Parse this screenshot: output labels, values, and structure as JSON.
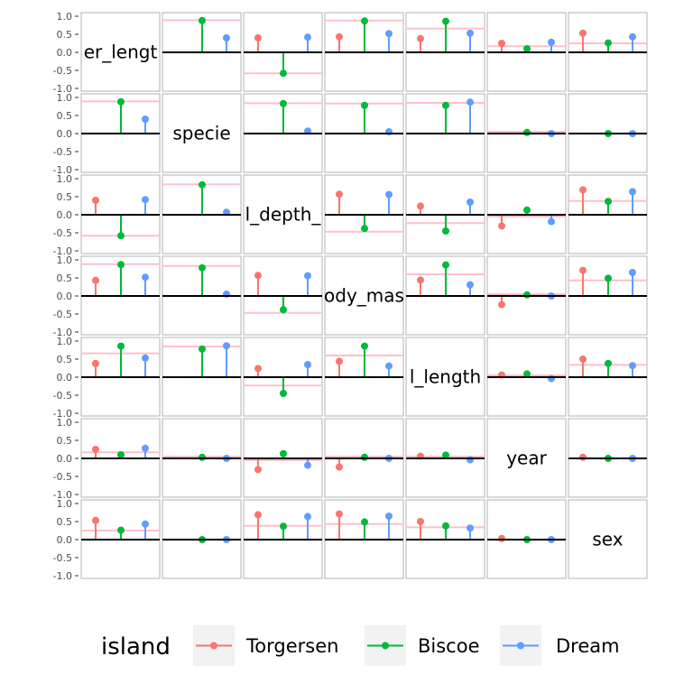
{
  "chart_data": {
    "type": "lollipop-matrix",
    "variables": [
      "bill_length_mm",
      "species",
      "bill_depth_mm",
      "body_mass_g",
      "flipper_length_mm",
      "year",
      "sex"
    ],
    "diagonal_labels": [
      "er_lengt",
      "specie",
      "l_depth_",
      "ody_mas",
      "l_length",
      "year",
      "sex"
    ],
    "ylim": [
      -1.0,
      1.0
    ],
    "y_ticks": [
      1.0,
      0.5,
      0.0,
      -0.5,
      -1.0
    ],
    "y_tick_labels": [
      "1.0",
      "0.5",
      "0.0",
      "-0.5",
      "-1.0"
    ],
    "groups": [
      "Torgersen",
      "Biscoe",
      "Dream"
    ],
    "colors": {
      "Torgersen": "#f8766d",
      "Biscoe": "#00ba38",
      "Dream": "#619cff",
      "reference": "#ffc0cb",
      "frame": "#b3b3b3"
    },
    "matrix": [
      [
        null,
        [
          null,
          0.88,
          0.4
        ],
        [
          0.4,
          -0.58,
          0.42
        ],
        [
          0.43,
          0.87,
          0.52
        ],
        [
          0.38,
          0.86,
          0.53
        ],
        [
          0.25,
          0.1,
          0.28
        ],
        [
          0.53,
          0.26,
          0.43
        ]
      ],
      [
        [
          null,
          0.88,
          0.4
        ],
        null,
        [
          null,
          0.83,
          0.07
        ],
        [
          null,
          0.78,
          0.05
        ],
        [
          null,
          0.78,
          0.87
        ],
        [
          null,
          0.03,
          0.0
        ],
        [
          null,
          0.0,
          0.0
        ]
      ],
      [
        [
          0.4,
          -0.58,
          0.42
        ],
        [
          null,
          0.83,
          0.07
        ],
        null,
        [
          0.57,
          -0.38,
          0.56
        ],
        [
          0.24,
          -0.45,
          0.35
        ],
        [
          -0.31,
          0.13,
          -0.19
        ],
        [
          0.69,
          0.37,
          0.64
        ]
      ],
      [
        [
          0.43,
          0.87,
          0.52
        ],
        [
          null,
          0.78,
          0.05
        ],
        [
          0.57,
          -0.38,
          0.56
        ],
        null,
        [
          0.44,
          0.86,
          0.31
        ],
        [
          -0.24,
          0.03,
          0.0
        ],
        [
          0.71,
          0.49,
          0.65
        ]
      ],
      [
        [
          0.38,
          0.86,
          0.53
        ],
        [
          null,
          0.78,
          0.87
        ],
        [
          0.24,
          -0.45,
          0.35
        ],
        [
          0.44,
          0.86,
          0.31
        ],
        null,
        [
          0.06,
          0.09,
          -0.04
        ],
        [
          0.5,
          0.38,
          0.32
        ]
      ],
      [
        [
          0.25,
          0.1,
          0.28
        ],
        [
          null,
          0.03,
          0.0
        ],
        [
          -0.31,
          0.13,
          -0.19
        ],
        [
          -0.24,
          0.03,
          0.0
        ],
        [
          0.06,
          0.09,
          -0.04
        ],
        null,
        [
          0.03,
          0.0,
          0.0
        ]
      ],
      [
        [
          0.53,
          0.26,
          0.43
        ],
        [
          null,
          0.0,
          0.0
        ],
        [
          0.69,
          0.37,
          0.64
        ],
        [
          0.71,
          0.49,
          0.65
        ],
        [
          0.5,
          0.38,
          0.32
        ],
        [
          0.03,
          0.0,
          0.0
        ],
        null
      ]
    ],
    "overall": [
      [
        null,
        0.89,
        -0.58,
        0.88,
        0.66,
        0.17,
        0.25
      ],
      [
        0.89,
        null,
        0.84,
        0.83,
        0.85,
        0.05,
        0.0
      ],
      [
        -0.58,
        0.84,
        null,
        -0.47,
        -0.23,
        -0.05,
        0.38
      ],
      [
        0.88,
        0.83,
        -0.47,
        null,
        0.6,
        0.05,
        0.43
      ],
      [
        0.66,
        0.85,
        -0.23,
        0.6,
        null,
        0.05,
        0.34
      ],
      [
        0.17,
        0.05,
        -0.05,
        0.05,
        0.05,
        null,
        0.0
      ],
      [
        0.25,
        0.0,
        0.38,
        0.43,
        0.34,
        0.0,
        null
      ]
    ],
    "legend": {
      "title": "island",
      "position": "bottom",
      "items": [
        "Torgersen",
        "Biscoe",
        "Dream"
      ]
    }
  }
}
